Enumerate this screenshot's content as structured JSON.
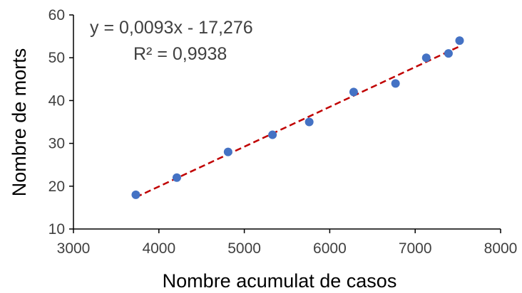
{
  "chart_data": {
    "type": "scatter",
    "title": "",
    "xlabel": "Nombre acumulat de casos",
    "ylabel": "Nombre de morts",
    "xlim": [
      3000,
      8000
    ],
    "ylim": [
      10,
      60
    ],
    "xticks": [
      "3000",
      "4000",
      "5000",
      "6000",
      "7000",
      "8000"
    ],
    "yticks": [
      "10",
      "20",
      "30",
      "40",
      "50",
      "60"
    ],
    "grid": false,
    "legend": "none",
    "points": [
      {
        "x": 3730,
        "y": 18
      },
      {
        "x": 4210,
        "y": 22
      },
      {
        "x": 4810,
        "y": 28
      },
      {
        "x": 5330,
        "y": 32
      },
      {
        "x": 5760,
        "y": 35
      },
      {
        "x": 6280,
        "y": 42
      },
      {
        "x": 6770,
        "y": 44
      },
      {
        "x": 7130,
        "y": 50
      },
      {
        "x": 7390,
        "y": 51
      },
      {
        "x": 7520,
        "y": 54
      }
    ],
    "trendline": {
      "slope": 0.0093,
      "intercept": -17.276,
      "x_range": [
        3730,
        7520
      ],
      "style": "dashed"
    },
    "annotations": {
      "equation": "y = 0,0093x - 17,276",
      "r_squared": "R² = 0,9938"
    },
    "colors": {
      "points": "#4472C4",
      "trendline": "#C00000",
      "axis": "#000000",
      "tick_text": "#404040"
    }
  }
}
